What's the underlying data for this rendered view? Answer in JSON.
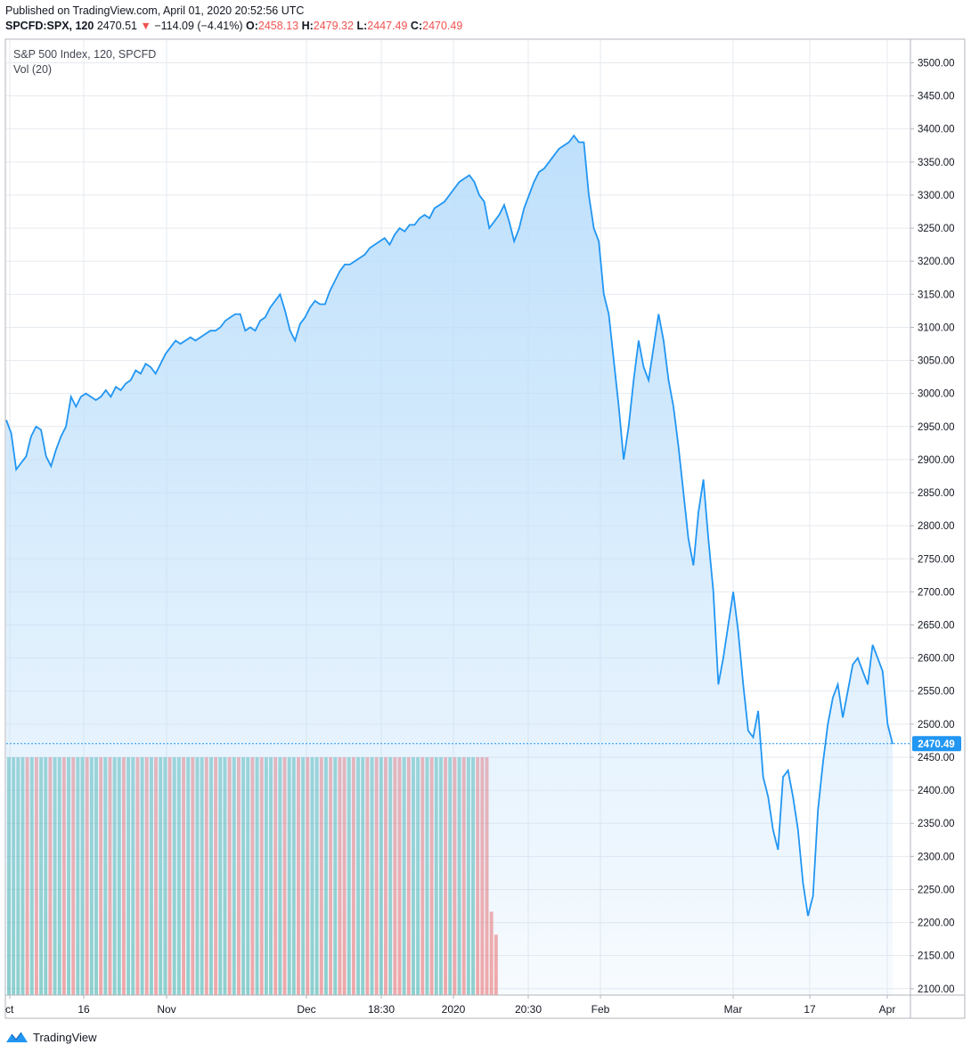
{
  "header": {
    "published": "Published on TradingView.com, April 01, 2020 20:52:56 UTC",
    "symbol": "SPCFD:SPX, 120",
    "last": "2470.51",
    "change_arrow": "▼",
    "change": "−114.09 (−4.41%)",
    "o_label": "O:",
    "o": "2458.13",
    "h_label": "H:",
    "h": "2479.32",
    "l_label": "L:",
    "l": "2447.49",
    "c_label": "C:",
    "c": "2470.49"
  },
  "legend": {
    "title": "S&P 500 Index, 120, SPCFD",
    "volume": "Vol (20)"
  },
  "footer": {
    "brand": "TradingView",
    "logo_icon": "tradingview-logo-icon"
  },
  "colors": {
    "line": "#2196f3",
    "area_top": "#bbdefb",
    "grid": "#e6e9ef",
    "vol_up": "#26a69a",
    "vol_down": "#ef5350",
    "label_bg": "#2196f3"
  },
  "chart_data": {
    "type": "area",
    "title": "S&P 500 Index, 120, SPCFD",
    "xlabel": "",
    "ylabel": "",
    "ylim": [
      2090,
      3520
    ],
    "y_ticks": [
      "3500.00",
      "3450.00",
      "3400.00",
      "3350.00",
      "3300.00",
      "3250.00",
      "3200.00",
      "3150.00",
      "3100.00",
      "3050.00",
      "3000.00",
      "2950.00",
      "2900.00",
      "2850.00",
      "2800.00",
      "2750.00",
      "2700.00",
      "2650.00",
      "2600.00",
      "2550.00",
      "2500.00",
      "2450.00",
      "2400.00",
      "2350.00",
      "2300.00",
      "2250.00",
      "2200.00",
      "2150.00",
      "2100.00"
    ],
    "x_ticks": [
      "ct",
      "16",
      "Nov",
      "Dec",
      "18:30",
      "2020",
      "20:30",
      "Feb",
      "Mar",
      "17",
      "Apr"
    ],
    "last_price_label": "2470.49",
    "grid": true,
    "series": [
      {
        "values": [
          2960,
          2940,
          2885,
          2895,
          2905,
          2935,
          2950,
          2945,
          2905,
          2890,
          2915,
          2935,
          2950,
          2995,
          2980,
          2995,
          3000,
          2995,
          2990,
          2995,
          3005,
          2995,
          3010,
          3005,
          3015,
          3020,
          3035,
          3030,
          3045,
          3040,
          3030,
          3045,
          3060,
          3070,
          3080,
          3075,
          3080,
          3085,
          3080,
          3085,
          3090,
          3095,
          3095,
          3100,
          3110,
          3115,
          3120,
          3120,
          3095,
          3100,
          3095,
          3110,
          3115,
          3130,
          3140,
          3150,
          3125,
          3095,
          3080,
          3105,
          3115,
          3130,
          3140,
          3135,
          3135,
          3155,
          3170,
          3185,
          3195,
          3195,
          3200,
          3205,
          3210,
          3220,
          3225,
          3230,
          3235,
          3225,
          3240,
          3250,
          3245,
          3255,
          3255,
          3265,
          3270,
          3265,
          3280,
          3285,
          3290,
          3300,
          3310,
          3320,
          3325,
          3330,
          3320,
          3300,
          3290,
          3250,
          3260,
          3270,
          3285,
          3260,
          3230,
          3250,
          3280,
          3300,
          3320,
          3335,
          3340,
          3350,
          3360,
          3370,
          3375,
          3380,
          3390,
          3380,
          3380,
          3300,
          3250,
          3230,
          3150,
          3120,
          3050,
          2980,
          2900,
          2950,
          3020,
          3080,
          3040,
          3020,
          3070,
          3120,
          3080,
          3020,
          2980,
          2920,
          2850,
          2780,
          2740,
          2820,
          2870,
          2780,
          2700,
          2560,
          2600,
          2650,
          2700,
          2640,
          2560,
          2490,
          2480,
          2520,
          2420,
          2390,
          2340,
          2310,
          2420,
          2430,
          2390,
          2340,
          2260,
          2210,
          2240,
          2370,
          2440,
          2500,
          2540,
          2560,
          2510,
          2550,
          2590,
          2600,
          2580,
          2560,
          2620,
          2600,
          2580,
          2500,
          2470
        ]
      }
    ],
    "volume": {
      "name": "Vol (20)",
      "bars": [
        1,
        1,
        1,
        1,
        0,
        1,
        0,
        1,
        1,
        0,
        1,
        1,
        0,
        1,
        0,
        1,
        1,
        0,
        1,
        1,
        0,
        1,
        0,
        1,
        1,
        0,
        1,
        1,
        0,
        1,
        0,
        1,
        0,
        1,
        1,
        0,
        1,
        1,
        0,
        1,
        0,
        1,
        1,
        0,
        1,
        0,
        1,
        1,
        0,
        1,
        0,
        1,
        1,
        0,
        1,
        0,
        1,
        1,
        0,
        1,
        0,
        1,
        1,
        0,
        1,
        0,
        1,
        1,
        0,
        1,
        0,
        1,
        0,
        0,
        1,
        0,
        1,
        1,
        0,
        1,
        0,
        1,
        0,
        1,
        0,
        0,
        1,
        0,
        1,
        1,
        0,
        1,
        0,
        1,
        1,
        0,
        1,
        0,
        1,
        0,
        1,
        1,
        0,
        0,
        0,
        0,
        0
      ]
    }
  }
}
